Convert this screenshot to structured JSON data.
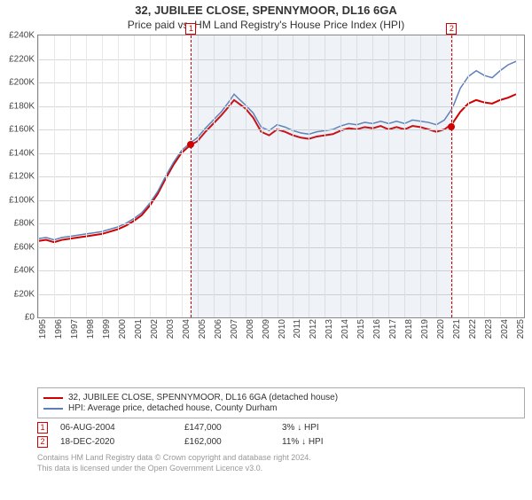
{
  "title": "32, JUBILEE CLOSE, SPENNYMOOR, DL16 6GA",
  "subtitle": "Price paid vs. HM Land Registry's House Price Index (HPI)",
  "chart": {
    "type": "line",
    "background_color": "#ffffff",
    "grid_color": "#d8d8d8",
    "xlim": [
      1995,
      2025.5
    ],
    "ylim": [
      0,
      240000
    ],
    "ytick_step": 20000,
    "ytick_labels": [
      "£0",
      "£20K",
      "£40K",
      "£60K",
      "£80K",
      "£100K",
      "£120K",
      "£140K",
      "£160K",
      "£180K",
      "£200K",
      "£220K",
      "£240K"
    ],
    "xticks": [
      1995,
      1996,
      1997,
      1998,
      1999,
      2000,
      2001,
      2002,
      2003,
      2004,
      2005,
      2006,
      2007,
      2008,
      2009,
      2010,
      2011,
      2012,
      2013,
      2014,
      2015,
      2016,
      2017,
      2018,
      2019,
      2020,
      2021,
      2022,
      2023,
      2024,
      2025
    ],
    "shade": {
      "from": 2004.6,
      "to": 2020.96,
      "color": "rgba(130,160,200,0.13)"
    },
    "markers": [
      {
        "n": "1",
        "x": 2004.6,
        "y": 147000,
        "color": "#d00000",
        "box_top_offset": -14
      },
      {
        "n": "2",
        "x": 2020.96,
        "y": 162000,
        "color": "#d00000",
        "box_top_offset": -14
      }
    ],
    "series": [
      {
        "name": "32, JUBILEE CLOSE, SPENNYMOOR, DL16 6GA (detached house)",
        "color": "#d00000",
        "width": 2,
        "data": [
          [
            1995,
            65000
          ],
          [
            1995.5,
            66000
          ],
          [
            1996,
            64000
          ],
          [
            1996.5,
            66000
          ],
          [
            1997,
            67000
          ],
          [
            1997.5,
            68000
          ],
          [
            1998,
            69000
          ],
          [
            1998.5,
            70000
          ],
          [
            1999,
            71000
          ],
          [
            1999.5,
            73000
          ],
          [
            2000,
            75000
          ],
          [
            2000.5,
            78000
          ],
          [
            2001,
            82000
          ],
          [
            2001.5,
            87000
          ],
          [
            2002,
            95000
          ],
          [
            2002.5,
            105000
          ],
          [
            2003,
            118000
          ],
          [
            2003.5,
            130000
          ],
          [
            2004,
            140000
          ],
          [
            2004.5,
            146000
          ],
          [
            2005,
            150000
          ],
          [
            2005.5,
            158000
          ],
          [
            2006,
            165000
          ],
          [
            2006.5,
            172000
          ],
          [
            2007,
            180000
          ],
          [
            2007.3,
            185000
          ],
          [
            2007.6,
            182000
          ],
          [
            2008,
            178000
          ],
          [
            2008.5,
            170000
          ],
          [
            2009,
            158000
          ],
          [
            2009.5,
            155000
          ],
          [
            2010,
            160000
          ],
          [
            2010.5,
            158000
          ],
          [
            2011,
            155000
          ],
          [
            2011.5,
            153000
          ],
          [
            2012,
            152000
          ],
          [
            2012.5,
            154000
          ],
          [
            2013,
            155000
          ],
          [
            2013.5,
            156000
          ],
          [
            2014,
            159000
          ],
          [
            2014.5,
            161000
          ],
          [
            2015,
            160000
          ],
          [
            2015.5,
            162000
          ],
          [
            2016,
            161000
          ],
          [
            2016.5,
            163000
          ],
          [
            2017,
            160000
          ],
          [
            2017.5,
            162000
          ],
          [
            2018,
            160000
          ],
          [
            2018.5,
            163000
          ],
          [
            2019,
            162000
          ],
          [
            2019.5,
            160000
          ],
          [
            2020,
            158000
          ],
          [
            2020.5,
            160000
          ],
          [
            2021,
            165000
          ],
          [
            2021.5,
            175000
          ],
          [
            2022,
            182000
          ],
          [
            2022.5,
            185000
          ],
          [
            2023,
            183000
          ],
          [
            2023.5,
            182000
          ],
          [
            2024,
            185000
          ],
          [
            2024.5,
            187000
          ],
          [
            2025,
            190000
          ]
        ]
      },
      {
        "name": "HPI: Average price, detached house, County Durham",
        "color": "#5b7fb8",
        "width": 1.5,
        "data": [
          [
            1995,
            67000
          ],
          [
            1995.5,
            68000
          ],
          [
            1996,
            66000
          ],
          [
            1996.5,
            68000
          ],
          [
            1997,
            69000
          ],
          [
            1997.5,
            70000
          ],
          [
            1998,
            71000
          ],
          [
            1998.5,
            72000
          ],
          [
            1999,
            73000
          ],
          [
            1999.5,
            75000
          ],
          [
            2000,
            77000
          ],
          [
            2000.5,
            80000
          ],
          [
            2001,
            84000
          ],
          [
            2001.5,
            89000
          ],
          [
            2002,
            97000
          ],
          [
            2002.5,
            107000
          ],
          [
            2003,
            120000
          ],
          [
            2003.5,
            132000
          ],
          [
            2004,
            142000
          ],
          [
            2004.5,
            148000
          ],
          [
            2005,
            153000
          ],
          [
            2005.5,
            161000
          ],
          [
            2006,
            168000
          ],
          [
            2006.5,
            175000
          ],
          [
            2007,
            184000
          ],
          [
            2007.3,
            190000
          ],
          [
            2007.6,
            186000
          ],
          [
            2008,
            181000
          ],
          [
            2008.5,
            174000
          ],
          [
            2009,
            162000
          ],
          [
            2009.5,
            159000
          ],
          [
            2010,
            164000
          ],
          [
            2010.5,
            162000
          ],
          [
            2011,
            159000
          ],
          [
            2011.5,
            157000
          ],
          [
            2012,
            156000
          ],
          [
            2012.5,
            158000
          ],
          [
            2013,
            159000
          ],
          [
            2013.5,
            160000
          ],
          [
            2014,
            163000
          ],
          [
            2014.5,
            165000
          ],
          [
            2015,
            164000
          ],
          [
            2015.5,
            166000
          ],
          [
            2016,
            165000
          ],
          [
            2016.5,
            167000
          ],
          [
            2017,
            165000
          ],
          [
            2017.5,
            167000
          ],
          [
            2018,
            165000
          ],
          [
            2018.5,
            168000
          ],
          [
            2019,
            167000
          ],
          [
            2019.5,
            166000
          ],
          [
            2020,
            164000
          ],
          [
            2020.5,
            168000
          ],
          [
            2021,
            178000
          ],
          [
            2021.5,
            195000
          ],
          [
            2022,
            205000
          ],
          [
            2022.5,
            210000
          ],
          [
            2023,
            206000
          ],
          [
            2023.5,
            204000
          ],
          [
            2024,
            210000
          ],
          [
            2024.5,
            215000
          ],
          [
            2025,
            218000
          ]
        ]
      }
    ]
  },
  "legend": {
    "items": [
      {
        "color": "#d00000",
        "label": "32, JUBILEE CLOSE, SPENNYMOOR, DL16 6GA (detached house)"
      },
      {
        "color": "#5b7fb8",
        "label": "HPI: Average price, detached house, County Durham"
      }
    ]
  },
  "transactions": [
    {
      "n": "1",
      "date": "06-AUG-2004",
      "price": "£147,000",
      "diff": "3% ↓ HPI",
      "color": "#d00000"
    },
    {
      "n": "2",
      "date": "18-DEC-2020",
      "price": "£162,000",
      "diff": "11% ↓ HPI",
      "color": "#d00000"
    }
  ],
  "footer": {
    "line1": "Contains HM Land Registry data © Crown copyright and database right 2024.",
    "line2": "This data is licensed under the Open Government Licence v3.0."
  }
}
